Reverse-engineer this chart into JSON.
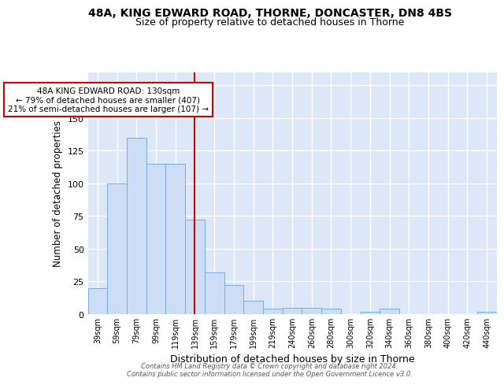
{
  "title1": "48A, KING EDWARD ROAD, THORNE, DONCASTER, DN8 4BS",
  "title2": "Size of property relative to detached houses in Thorne",
  "xlabel": "Distribution of detached houses by size in Thorne",
  "ylabel": "Number of detached properties",
  "bins": [
    "39sqm",
    "59sqm",
    "79sqm",
    "99sqm",
    "119sqm",
    "139sqm",
    "159sqm",
    "179sqm",
    "199sqm",
    "219sqm",
    "240sqm",
    "260sqm",
    "280sqm",
    "300sqm",
    "320sqm",
    "340sqm",
    "360sqm",
    "380sqm",
    "400sqm",
    "420sqm",
    "440sqm"
  ],
  "counts": [
    20,
    100,
    135,
    115,
    115,
    72,
    32,
    22,
    10,
    4,
    5,
    5,
    4,
    0,
    2,
    4,
    0,
    0,
    0,
    0,
    2
  ],
  "bar_color": "#ccddf5",
  "bar_edge_color": "#7aaddc",
  "vline_x": 5.0,
  "vline_color": "#cc0000",
  "annotation_text": "48A KING EDWARD ROAD: 130sqm\n← 79% of detached houses are smaller (407)\n21% of semi-detached houses are larger (107) →",
  "annotation_box_color": "#ffffff",
  "annotation_box_edge": "#cc0000",
  "bg_color": "#dce8f8",
  "grid_color": "#ffffff",
  "ylim": [
    0,
    185
  ],
  "footer": "Contains HM Land Registry data © Crown copyright and database right 2024.\nContains public sector information licensed under the Open Government Licence v3.0.",
  "title1_fontsize": 10,
  "title2_fontsize": 9,
  "ylabel_fontsize": 8.5,
  "xlabel_fontsize": 9
}
